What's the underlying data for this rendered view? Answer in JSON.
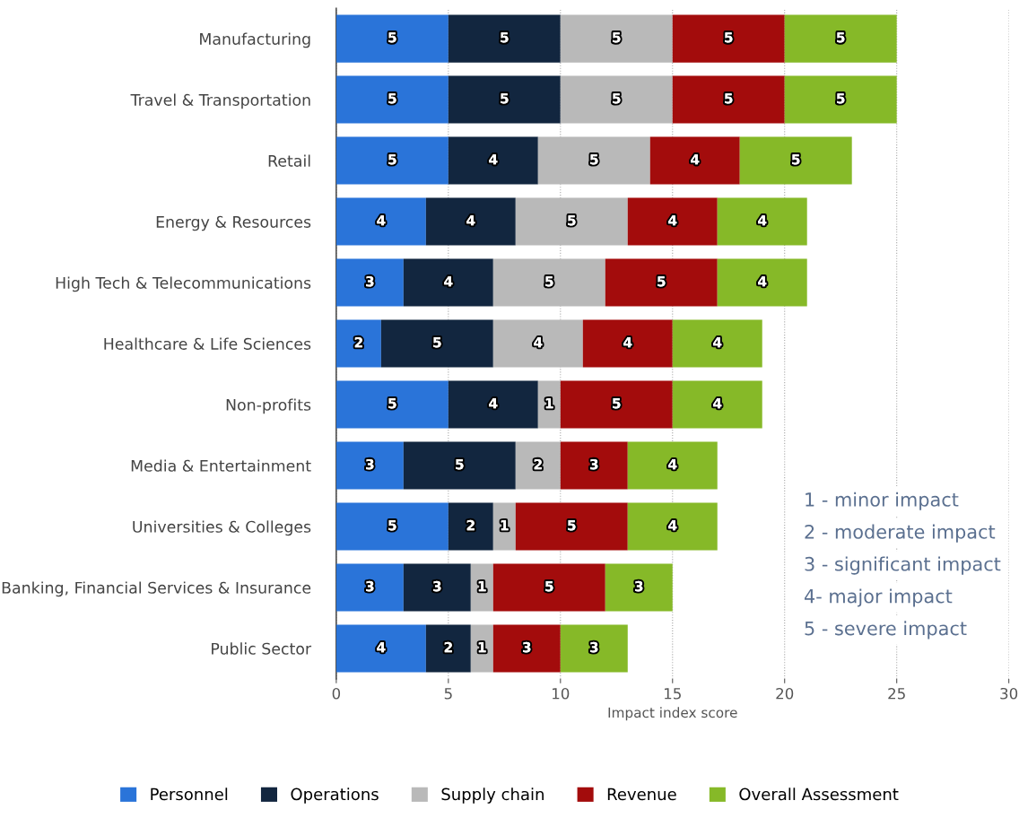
{
  "chart_data": {
    "type": "bar",
    "orientation": "horizontal",
    "stacked": true,
    "xlabel": "Impact index score",
    "categories": [
      "Manufacturing",
      "Travel & Transportation",
      "Retail",
      "Energy & Resources",
      "High Tech & Telecommunications",
      "Healthcare & Life Sciences",
      "Non-profits",
      "Media & Entertainment",
      "Universities & Colleges",
      "Banking, Financial Services & Insurance",
      "Public Sector"
    ],
    "series": [
      {
        "name": "Personnel",
        "color": "#2a74d9",
        "values": [
          5,
          5,
          5,
          4,
          3,
          2,
          5,
          3,
          5,
          3,
          4
        ]
      },
      {
        "name": "Operations",
        "color": "#12263f",
        "values": [
          5,
          5,
          4,
          4,
          4,
          5,
          4,
          5,
          2,
          3,
          2
        ]
      },
      {
        "name": "Supply chain",
        "color": "#b9b9b9",
        "values": [
          5,
          5,
          5,
          5,
          5,
          4,
          1,
          2,
          1,
          1,
          1
        ]
      },
      {
        "name": "Revenue",
        "color": "#a30c0c",
        "values": [
          5,
          5,
          4,
          4,
          5,
          4,
          5,
          3,
          5,
          5,
          3
        ]
      },
      {
        "name": "Overall Assessment",
        "color": "#86b928",
        "values": [
          5,
          5,
          5,
          4,
          4,
          4,
          4,
          4,
          4,
          3,
          3
        ]
      }
    ],
    "xlim": [
      0,
      30
    ],
    "xticks": [
      0,
      5,
      10,
      15,
      20,
      25,
      30
    ],
    "grid": "x",
    "legend": "bottom",
    "data_labels": true,
    "annotations": [
      "1 - minor impact",
      "2 - moderate impact",
      "3 - significant impact",
      "4- major impact",
      "5 - severe impact"
    ]
  }
}
